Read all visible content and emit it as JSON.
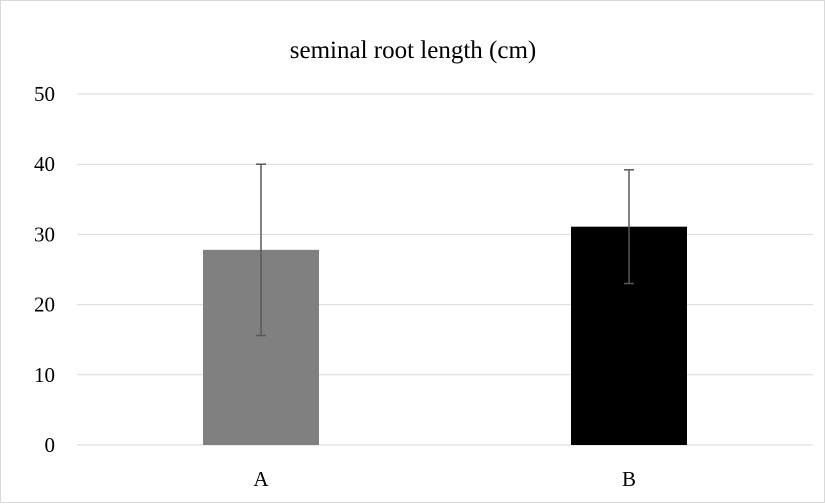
{
  "chart_data": {
    "type": "bar",
    "title": "seminal root length (cm)",
    "xlabel": "",
    "ylabel": "",
    "categories": [
      "A",
      "B"
    ],
    "values": [
      27.8,
      31.1
    ],
    "error_bars": [
      12.2,
      8.1
    ],
    "colors": [
      "#808080",
      "#000000"
    ],
    "ylim": [
      0,
      50
    ],
    "yticks": [
      0,
      10,
      20,
      30,
      40,
      50
    ],
    "grid": true,
    "gridline_color": "#d9d9d9",
    "errorbar_color": "#595959",
    "legend": "none"
  }
}
